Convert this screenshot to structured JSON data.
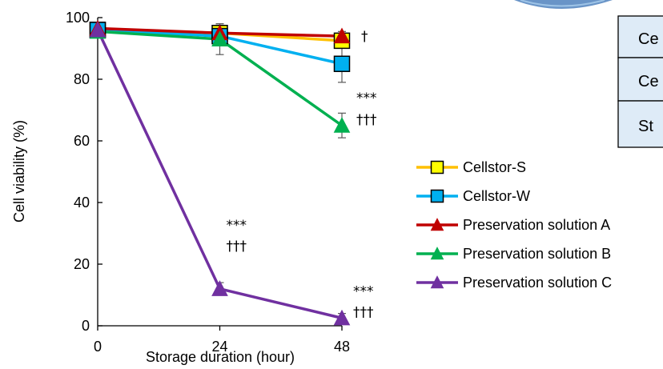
{
  "chart_data": {
    "type": "line",
    "xlabel": "Storage duration (hour)",
    "ylabel": "Cell viability (%)",
    "x": [
      0,
      24,
      48
    ],
    "xlim": [
      0,
      48
    ],
    "ylim": [
      0,
      100
    ],
    "xticks": [
      "0",
      "24",
      "48"
    ],
    "yticks": [
      "0",
      "20",
      "40",
      "60",
      "80",
      "100"
    ],
    "grid": false,
    "legend_position": "right",
    "series": [
      {
        "name": "Cellstor-S",
        "values": [
          96,
          95,
          92.5
        ],
        "errors": [
          2,
          3,
          2
        ],
        "marker": "square",
        "color": "#FFC000",
        "fill": "#FFFF00"
      },
      {
        "name": "Cellstor-W",
        "values": [
          96,
          94,
          85
        ],
        "errors": [
          2,
          3,
          6
        ],
        "marker": "square",
        "color": "#00B0F0",
        "fill": "#00B0F0"
      },
      {
        "name": "Preservation solution A",
        "values": [
          96.5,
          95,
          94
        ],
        "errors": [
          1.5,
          2,
          1.5
        ],
        "marker": "triangle",
        "color": "#C00000",
        "fill": "#C00000"
      },
      {
        "name": "Preservation solution B",
        "values": [
          95.5,
          93,
          65
        ],
        "errors": [
          1.5,
          5,
          4
        ],
        "marker": "triangle",
        "color": "#00B050",
        "fill": "#00B050"
      },
      {
        "name": "Preservation solution C",
        "values": [
          96,
          12,
          2.5
        ],
        "errors": [
          1.5,
          2,
          1.5
        ],
        "marker": "triangle",
        "color": "#7030A0",
        "fill": "#7030A0"
      }
    ],
    "annotations": [
      {
        "text": "†",
        "x": 48,
        "y": 94
      },
      {
        "text": "***",
        "x": 48,
        "y": 65
      },
      {
        "text": "†††",
        "x": 48,
        "y": 65
      },
      {
        "text": "***",
        "x": 24,
        "y": 12
      },
      {
        "text": "†††",
        "x": 24,
        "y": 12
      },
      {
        "text": "***",
        "x": 48,
        "y": 2.5
      },
      {
        "text": "†††",
        "x": 48,
        "y": 2.5
      }
    ]
  },
  "table_fragment": {
    "rows": [
      "Ce",
      "Ce",
      "St"
    ]
  }
}
